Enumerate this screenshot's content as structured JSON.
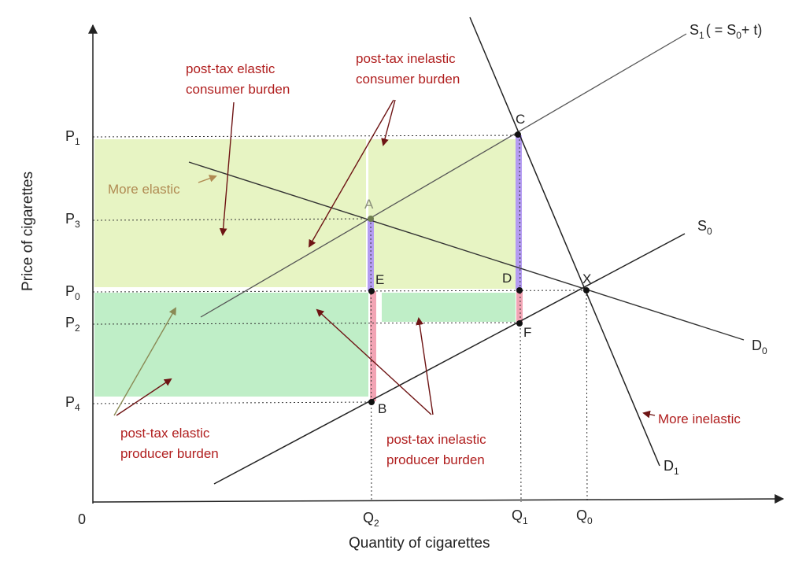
{
  "axes": {
    "y_title": "Price of cigarettes",
    "x_title": "Quantity of cigarettes",
    "origin": "0"
  },
  "price_ticks": [
    {
      "key": "p1",
      "letter": "P",
      "sub": "1"
    },
    {
      "key": "p3",
      "letter": "P",
      "sub": "3"
    },
    {
      "key": "p0",
      "letter": "P",
      "sub": "0"
    },
    {
      "key": "p2",
      "letter": "P",
      "sub": "2"
    },
    {
      "key": "p4",
      "letter": "P",
      "sub": "4"
    }
  ],
  "quantity_ticks": [
    {
      "key": "q2",
      "letter": "Q",
      "sub": "2"
    },
    {
      "key": "q1",
      "letter": "Q",
      "sub": "1"
    },
    {
      "key": "q0",
      "letter": "Q",
      "sub": "0"
    }
  ],
  "curve_labels": {
    "s1": {
      "pre": "S",
      "sub1": "1",
      "mid": "( = S",
      "sub2": "0",
      "post": "+ t)"
    },
    "s0": {
      "letter": "S",
      "sub": "0"
    },
    "d0": {
      "letter": "D",
      "sub": "0"
    },
    "d1": {
      "letter": "D",
      "sub": "1"
    }
  },
  "points": [
    "A",
    "B",
    "C",
    "D",
    "E",
    "F",
    "X"
  ],
  "annotations": {
    "elastic_consumer": [
      "post-tax elastic",
      "consumer burden"
    ],
    "inelastic_consumer": [
      "post-tax inelastic",
      "consumer burden"
    ],
    "elastic_producer": [
      "post-tax elastic",
      "producer burden"
    ],
    "inelastic_producer": [
      "post-tax inelastic",
      "producer burden"
    ],
    "more_elastic": "More elastic",
    "more_inelastic": "More inelastic"
  },
  "colors": {
    "consumer_burden_fill": "#e3f2b8",
    "producer_burden_fill": "#b4ebbd",
    "consumer_segment": "#b49cf2",
    "producer_segment": "#f2a4b4",
    "annotation_text": "#b01e1e",
    "arrow": "#6e1414",
    "elastic_label": "#b08a52"
  }
}
